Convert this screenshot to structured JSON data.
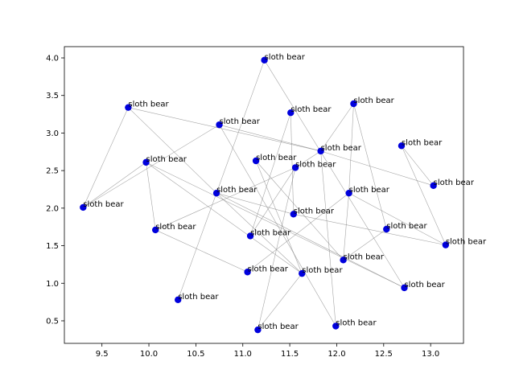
{
  "chart_data": {
    "type": "scatter",
    "title": "",
    "xlabel": "",
    "ylabel": "",
    "xlim": [
      9.1,
      13.35
    ],
    "ylim": [
      0.2,
      4.15
    ],
    "grid": false,
    "legend": "none",
    "x_ticks": [
      9.5,
      10.0,
      10.5,
      11.0,
      11.5,
      12.0,
      12.5,
      13.0
    ],
    "x_tick_labels": [
      "9.5",
      "10.0",
      "10.5",
      "11.0",
      "11.5",
      "12.0",
      "12.5",
      "13.0"
    ],
    "y_ticks": [
      0.5,
      1.0,
      1.5,
      2.0,
      2.5,
      3.0,
      3.5,
      4.0
    ],
    "y_tick_labels": [
      "0.5",
      "1.0",
      "1.5",
      "2.0",
      "2.5",
      "3.0",
      "3.5",
      "4.0"
    ],
    "point_color": "#0000dd",
    "edge_color": "#808080",
    "points": [
      {
        "x": 11.23,
        "y": 3.97,
        "label": "sloth bear"
      },
      {
        "x": 9.78,
        "y": 3.34,
        "label": "sloth bear"
      },
      {
        "x": 12.18,
        "y": 3.39,
        "label": "sloth bear"
      },
      {
        "x": 11.51,
        "y": 3.27,
        "label": "sloth bear"
      },
      {
        "x": 10.75,
        "y": 3.11,
        "label": "sloth bear"
      },
      {
        "x": 12.69,
        "y": 2.83,
        "label": "sloth bear"
      },
      {
        "x": 11.83,
        "y": 2.76,
        "label": "sloth bear"
      },
      {
        "x": 11.14,
        "y": 2.63,
        "label": "sloth bear"
      },
      {
        "x": 11.56,
        "y": 2.54,
        "label": "sloth bear"
      },
      {
        "x": 9.97,
        "y": 2.61,
        "label": "sloth bear"
      },
      {
        "x": 13.03,
        "y": 2.3,
        "label": "sloth bear"
      },
      {
        "x": 10.72,
        "y": 2.2,
        "label": "sloth bear"
      },
      {
        "x": 12.13,
        "y": 2.2,
        "label": "sloth bear"
      },
      {
        "x": 9.3,
        "y": 2.01,
        "label": "sloth bear"
      },
      {
        "x": 11.54,
        "y": 1.92,
        "label": "sloth bear"
      },
      {
        "x": 12.53,
        "y": 1.72,
        "label": "sloth bear"
      },
      {
        "x": 10.07,
        "y": 1.71,
        "label": "sloth bear"
      },
      {
        "x": 11.08,
        "y": 1.63,
        "label": "sloth bear"
      },
      {
        "x": 13.16,
        "y": 1.51,
        "label": "sloth bear"
      },
      {
        "x": 12.07,
        "y": 1.31,
        "label": "sloth bear"
      },
      {
        "x": 11.05,
        "y": 1.15,
        "label": "sloth bear"
      },
      {
        "x": 11.63,
        "y": 1.13,
        "label": "sloth bear"
      },
      {
        "x": 12.72,
        "y": 0.94,
        "label": "sloth bear"
      },
      {
        "x": 10.31,
        "y": 0.78,
        "label": "sloth bear"
      },
      {
        "x": 11.99,
        "y": 0.43,
        "label": "sloth bear"
      },
      {
        "x": 11.16,
        "y": 0.38,
        "label": "sloth bear"
      }
    ],
    "edges": [
      [
        1,
        11
      ],
      [
        11,
        21
      ],
      [
        21,
        9
      ],
      [
        9,
        16
      ],
      [
        16,
        8
      ],
      [
        8,
        6
      ],
      [
        6,
        2
      ],
      [
        2,
        12
      ],
      [
        12,
        19
      ],
      [
        5,
        10
      ],
      [
        10,
        6
      ],
      [
        6,
        1
      ],
      [
        1,
        13
      ],
      [
        13,
        4
      ],
      [
        4,
        6
      ],
      [
        6,
        24
      ],
      [
        0,
        23
      ],
      [
        0,
        22
      ],
      [
        24,
        4
      ],
      [
        3,
        17
      ],
      [
        3,
        14
      ],
      [
        17,
        8
      ],
      [
        14,
        18
      ],
      [
        7,
        19
      ],
      [
        19,
        15
      ],
      [
        15,
        2
      ],
      [
        9,
        22
      ],
      [
        22,
        11
      ],
      [
        11,
        14
      ],
      [
        25,
        8
      ],
      [
        25,
        21
      ],
      [
        21,
        7
      ],
      [
        13,
        9
      ],
      [
        20,
        12
      ],
      [
        5,
        18
      ],
      [
        12,
        18
      ],
      [
        16,
        20
      ]
    ]
  }
}
